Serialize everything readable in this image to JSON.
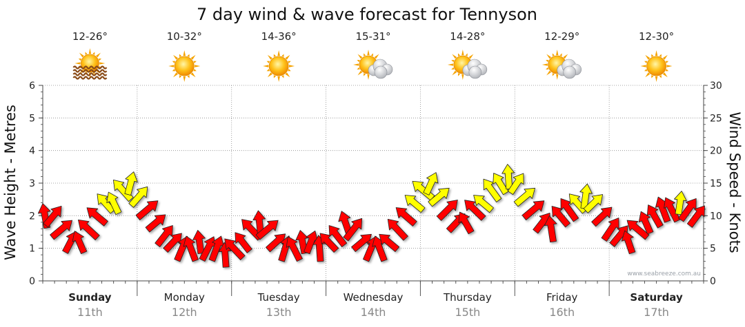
{
  "chart_data": {
    "type": "line",
    "title": "7 day wind & wave forecast for Tennyson",
    "ylabel_left": "Wave Height - Metres",
    "ylabel_right": "Wind Speed - Knots",
    "ylim_left": [
      0,
      6
    ],
    "ylim_right": [
      0,
      30
    ],
    "yticks_left": [
      "0",
      "1",
      "2",
      "3",
      "4",
      "5",
      "6"
    ],
    "yticks_right": [
      "0",
      "5",
      "10",
      "15",
      "20",
      "25",
      "30"
    ],
    "credit": "www.seabreeze.com.au",
    "colors": {
      "red": "#ff0000",
      "yellow": "#ffff00",
      "outline": "#222222",
      "grid": "#888888"
    },
    "days": [
      {
        "name": "Sunday",
        "date": "11th",
        "temp": "12-26°",
        "icon": "sun-haze-icon",
        "bold": true
      },
      {
        "name": "Monday",
        "date": "12th",
        "temp": "10-32°",
        "icon": "sun-icon",
        "bold": false
      },
      {
        "name": "Tuesday",
        "date": "13th",
        "temp": "14-36°",
        "icon": "sun-icon",
        "bold": false
      },
      {
        "name": "Wednesday",
        "date": "14th",
        "temp": "15-31°",
        "icon": "sun-cloud-icon",
        "bold": false
      },
      {
        "name": "Thursday",
        "date": "15th",
        "temp": "14-28°",
        "icon": "sun-cloud-icon",
        "bold": false
      },
      {
        "name": "Friday",
        "date": "16th",
        "temp": "12-29°",
        "icon": "sun-cloud-icon",
        "bold": false
      },
      {
        "name": "Saturday",
        "date": "17th",
        "temp": "12-30°",
        "icon": "sun-icon",
        "bold": true
      }
    ],
    "series": [
      {
        "name": "Wind (knots)",
        "note": "hourly samples from Sunday 00:00, arrows point downwind",
        "values": [
          10,
          11,
          10,
          9,
          8,
          7,
          6,
          5,
          6,
          7,
          8,
          9,
          10,
          11,
          12,
          12,
          12,
          13,
          14,
          14,
          15,
          14,
          13,
          12,
          11,
          10,
          9,
          8,
          7,
          7,
          6,
          6,
          5,
          5,
          5,
          5,
          6,
          6,
          5,
          5,
          5,
          4,
          4,
          5,
          5,
          6,
          6,
          7,
          8,
          9,
          9,
          8,
          8,
          7,
          6,
          6,
          5,
          5,
          5,
          5,
          6,
          6,
          6,
          5,
          5,
          5,
          6,
          6,
          7,
          8,
          9,
          9,
          8,
          7,
          6,
          6,
          5,
          5,
          5,
          6,
          6,
          7,
          8,
          9,
          10,
          11,
          12,
          13,
          14,
          15,
          15,
          14,
          13,
          12,
          11,
          10,
          9,
          9,
          9,
          10,
          11,
          12,
          12,
          13,
          14,
          14,
          15,
          15,
          16,
          16,
          15,
          14,
          13,
          12,
          11,
          10,
          9,
          8,
          8,
          9,
          10,
          10,
          11,
          11,
          12,
          13,
          13,
          13,
          12,
          11,
          10,
          9,
          8,
          7,
          7,
          6,
          6,
          7,
          8,
          9,
          9,
          10,
          10,
          10,
          11,
          11,
          11,
          12,
          12,
          11,
          11,
          10,
          10,
          9
        ]
      }
    ]
  }
}
